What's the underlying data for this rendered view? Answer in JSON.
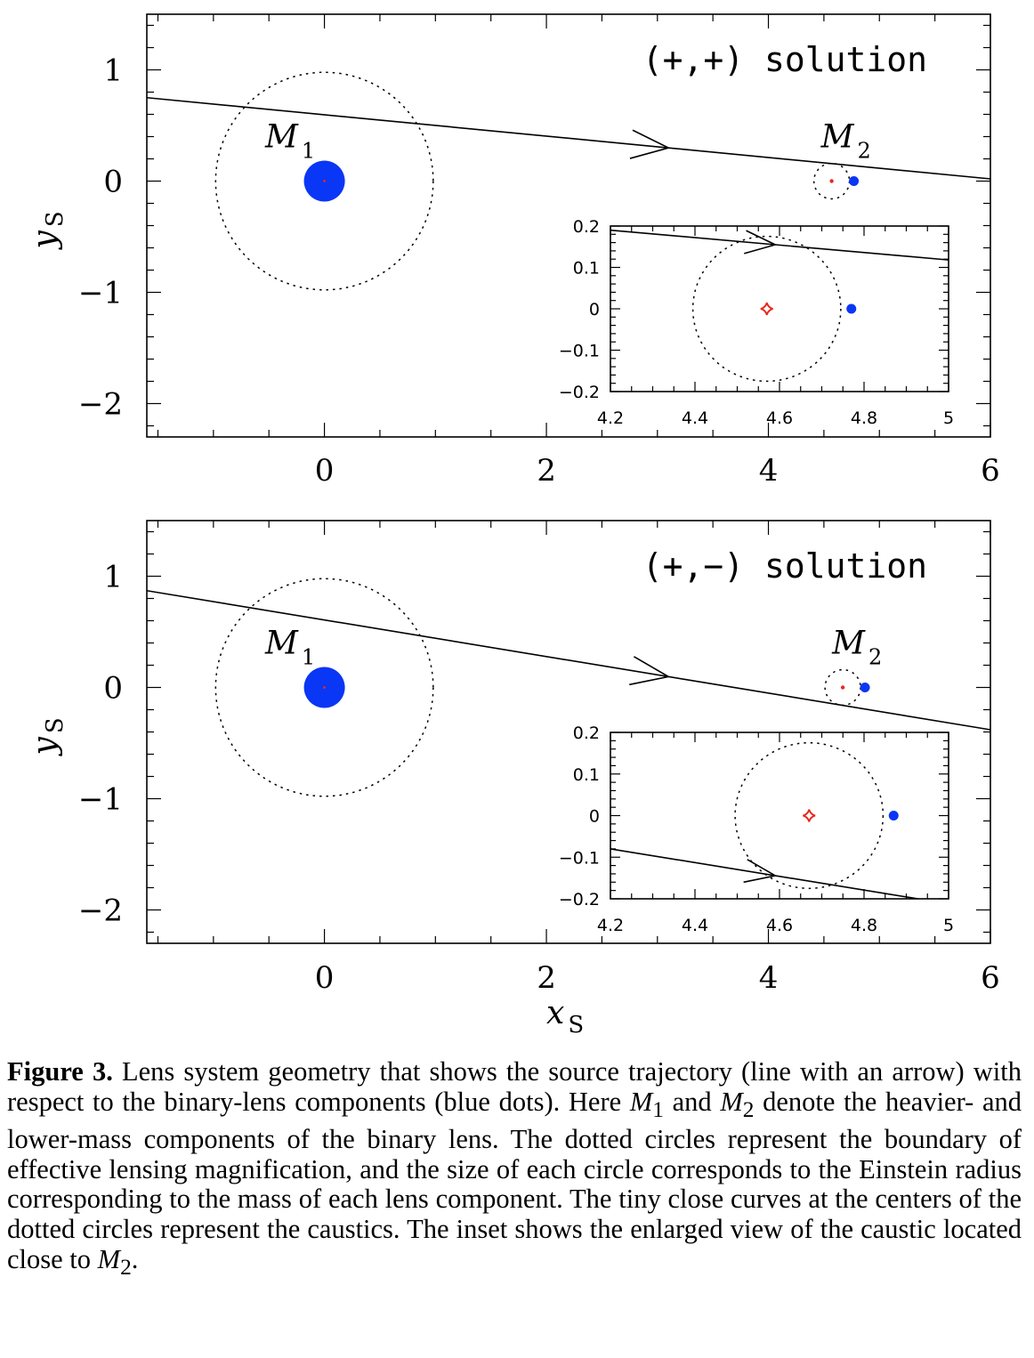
{
  "figure": {
    "xlabel": "x",
    "xlabel_sub": "S",
    "ylabel": "y",
    "ylabel_sub": "S",
    "m1_label": "M",
    "m1_sub": "1",
    "m2_label": "M",
    "m2_sub": "2",
    "colors": {
      "lens": "#0a36f5",
      "caustic": "#e8281e",
      "axes": "#000000"
    }
  },
  "chart_data": [
    {
      "type": "scatter",
      "panel": "top",
      "annotation": "(+,+) solution",
      "xlim": [
        -1.6,
        6.0
      ],
      "ylim": [
        -2.3,
        1.5
      ],
      "xticks": [
        "0",
        "2",
        "4",
        "6"
      ],
      "yticks": [
        "1",
        "0",
        "−1",
        "−2"
      ],
      "lens_components": [
        {
          "name": "M1",
          "x": 0.0,
          "y": 0.0,
          "einstein_radius": 0.98
        },
        {
          "name": "M2",
          "x": 4.77,
          "y": 0.0,
          "einstein_radius": 0.16
        }
      ],
      "caustics": [
        {
          "x": 0.0,
          "y": 0.0
        },
        {
          "x": 4.57,
          "y": 0.0
        }
      ],
      "trajectory": {
        "x": [
          -1.6,
          6.0
        ],
        "y": [
          0.75,
          0.02
        ],
        "arrow_x": 3.1
      },
      "inset": {
        "xlim": [
          4.2,
          5.0
        ],
        "ylim": [
          -0.2,
          0.2
        ],
        "xticks": [
          "4.2",
          "4.4",
          "4.6",
          "4.8",
          "5"
        ],
        "yticks": [
          "0.2",
          "0.1",
          "0",
          "−0.1",
          "−0.2"
        ],
        "lens": {
          "x": 4.77,
          "y": 0.0
        },
        "caustic": {
          "x": 4.57,
          "y": 0.0
        },
        "circle_radius": 0.175,
        "trajectory": {
          "x": [
            4.2,
            5.0
          ],
          "y": [
            0.19,
            0.118
          ],
          "arrow_x": 4.59
        }
      }
    },
    {
      "type": "scatter",
      "panel": "bottom",
      "annotation": "(+,−) solution",
      "xlim": [
        -1.6,
        6.0
      ],
      "ylim": [
        -2.3,
        1.5
      ],
      "xticks": [
        "0",
        "2",
        "4",
        "6"
      ],
      "yticks": [
        "1",
        "0",
        "−1",
        "−2"
      ],
      "lens_components": [
        {
          "name": "M1",
          "x": 0.0,
          "y": 0.0,
          "einstein_radius": 0.98
        },
        {
          "name": "M2",
          "x": 4.87,
          "y": 0.0,
          "einstein_radius": 0.16
        }
      ],
      "caustics": [
        {
          "x": 0.0,
          "y": 0.0
        },
        {
          "x": 4.67,
          "y": 0.0
        }
      ],
      "trajectory": {
        "x": [
          -1.6,
          6.0
        ],
        "y": [
          0.87,
          -0.38
        ],
        "arrow_x": 3.1
      },
      "inset": {
        "xlim": [
          4.2,
          5.0
        ],
        "ylim": [
          -0.2,
          0.2
        ],
        "xticks": [
          "4.2",
          "4.4",
          "4.6",
          "4.8",
          "5"
        ],
        "yticks": [
          "0.2",
          "0.1",
          "0",
          "−0.1",
          "−0.2"
        ],
        "lens": {
          "x": 4.87,
          "y": 0.0
        },
        "caustic": {
          "x": 4.67,
          "y": 0.0
        },
        "circle_radius": 0.175,
        "trajectory": {
          "x": [
            4.2,
            5.0
          ],
          "y": [
            -0.08,
            -0.212
          ],
          "arrow_x": 4.59
        }
      }
    }
  ],
  "caption": {
    "label": "Figure 3.",
    "text_1": " Lens system geometry that shows the source trajectory (line with an arrow) with respect to the binary-lens components (blue dots). Here ",
    "m1": "M",
    "m1_sub": "1",
    "text_2": " and ",
    "m2": "M",
    "m2_sub": "2",
    "text_3": " denote the heavier- and lower-mass components of the binary lens. The dotted circles represent the boundary of effective lensing magnification, and the size of each circle corresponds to the Einstein radius corresponding to the mass of each lens component. The tiny close curves at the centers of the dotted circles represent the caustics. The inset shows the enlarged view of the caustic located close to ",
    "m3": "M",
    "m3_sub": "2",
    "text_4": "."
  }
}
